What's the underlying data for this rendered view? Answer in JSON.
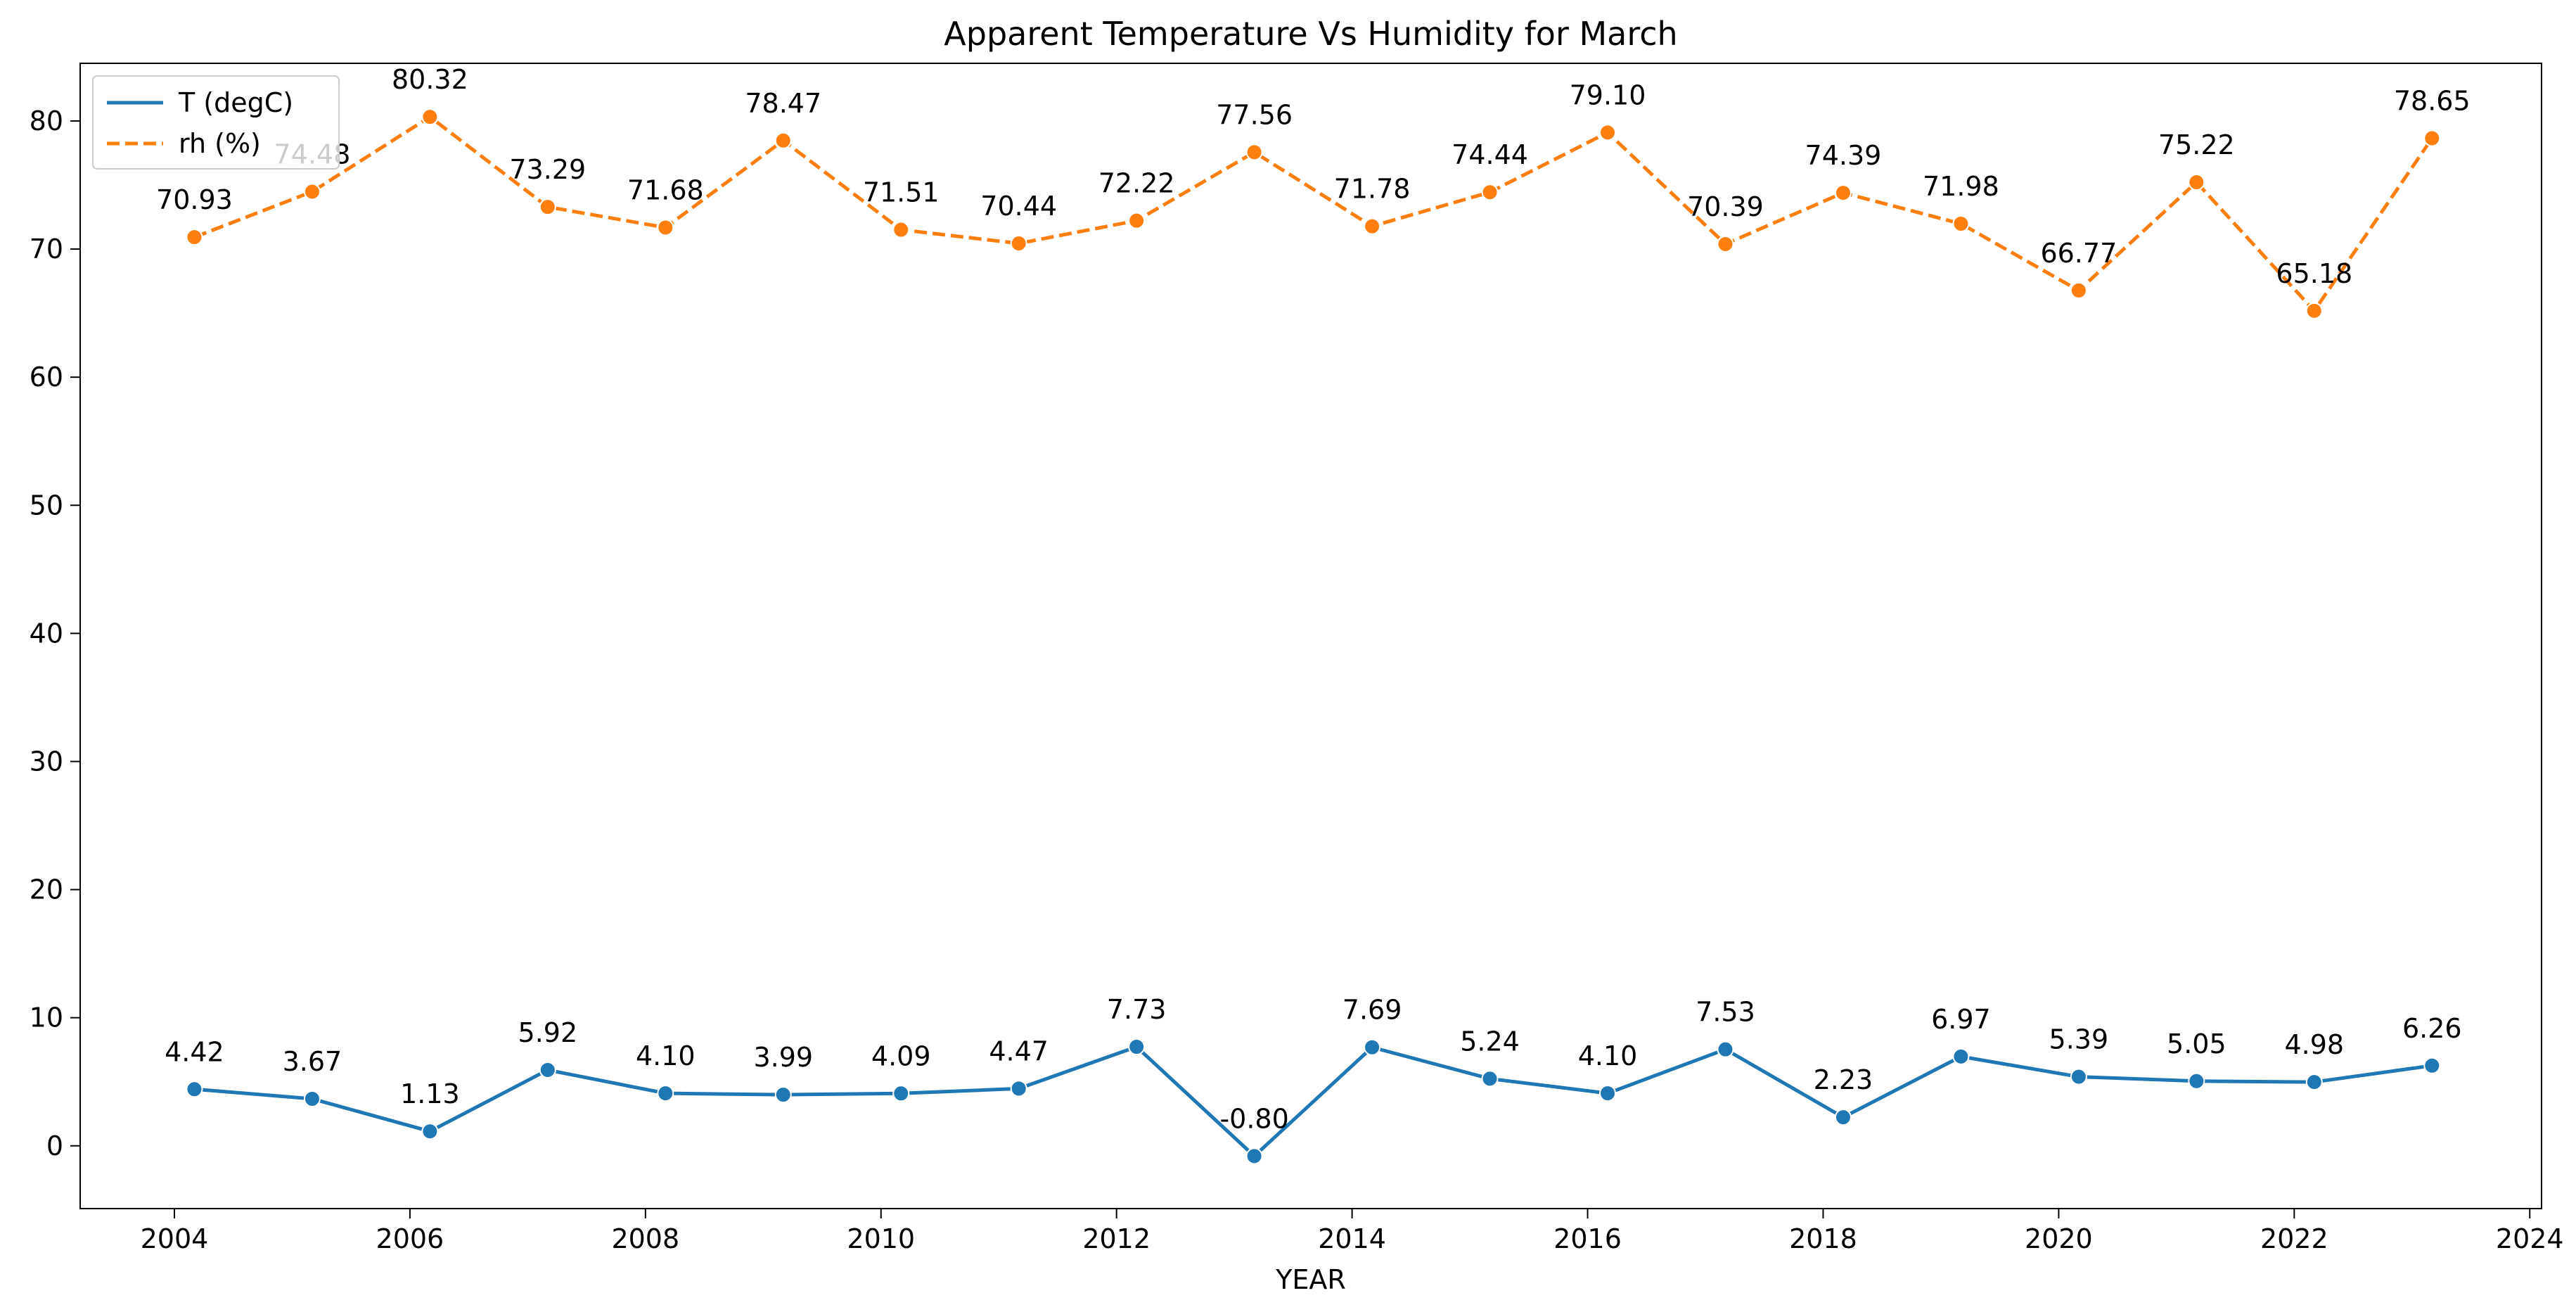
{
  "chart_data": {
    "type": "line",
    "title": "Apparent Temperature Vs Humidity for March",
    "xlabel": "YEAR",
    "ylabel": "",
    "xlim": [
      2003.2,
      2024.1
    ],
    "ylim": [
      -4.9,
      84.5
    ],
    "xticks": [
      2004,
      2006,
      2008,
      2010,
      2012,
      2014,
      2016,
      2018,
      2020,
      2022,
      2024
    ],
    "yticks": [
      0,
      10,
      20,
      30,
      40,
      50,
      60,
      70,
      80
    ],
    "legend_position": "upper-left",
    "grid": false,
    "x": [
      2004.17,
      2005.17,
      2006.17,
      2007.17,
      2008.17,
      2009.17,
      2010.17,
      2011.17,
      2012.17,
      2013.17,
      2014.17,
      2015.17,
      2016.17,
      2017.17,
      2018.17,
      2019.17,
      2020.17,
      2021.17,
      2022.17,
      2023.17
    ],
    "series": [
      {
        "name": "T (degC)",
        "color": "#1f77b4",
        "style": "solid",
        "values": [
          4.42,
          3.67,
          1.13,
          5.92,
          4.1,
          3.99,
          4.09,
          4.47,
          7.73,
          -0.8,
          7.69,
          5.24,
          4.1,
          7.53,
          2.23,
          6.97,
          5.39,
          5.05,
          4.98,
          6.26
        ],
        "labels": [
          "4.42",
          "3.67",
          "1.13",
          "5.92",
          "4.10",
          "3.99",
          "4.09",
          "4.47",
          "7.73",
          "-0.80",
          "7.69",
          "5.24",
          "4.10",
          "7.53",
          "2.23",
          "6.97",
          "5.39",
          "5.05",
          "4.98",
          "6.26"
        ]
      },
      {
        "name": "rh (%)",
        "color": "#ff7f0e",
        "style": "dashed",
        "values": [
          70.93,
          74.48,
          80.32,
          73.29,
          71.68,
          78.47,
          71.51,
          70.44,
          72.22,
          77.56,
          71.78,
          74.44,
          79.1,
          70.39,
          74.39,
          71.98,
          66.77,
          75.22,
          65.18,
          78.65
        ],
        "labels": [
          "70.93",
          "74.48",
          "80.32",
          "73.29",
          "71.68",
          "78.47",
          "71.51",
          "70.44",
          "72.22",
          "77.56",
          "71.78",
          "74.44",
          "79.10",
          "70.39",
          "74.39",
          "71.98",
          "66.77",
          "75.22",
          "65.18",
          "78.65"
        ]
      }
    ]
  }
}
